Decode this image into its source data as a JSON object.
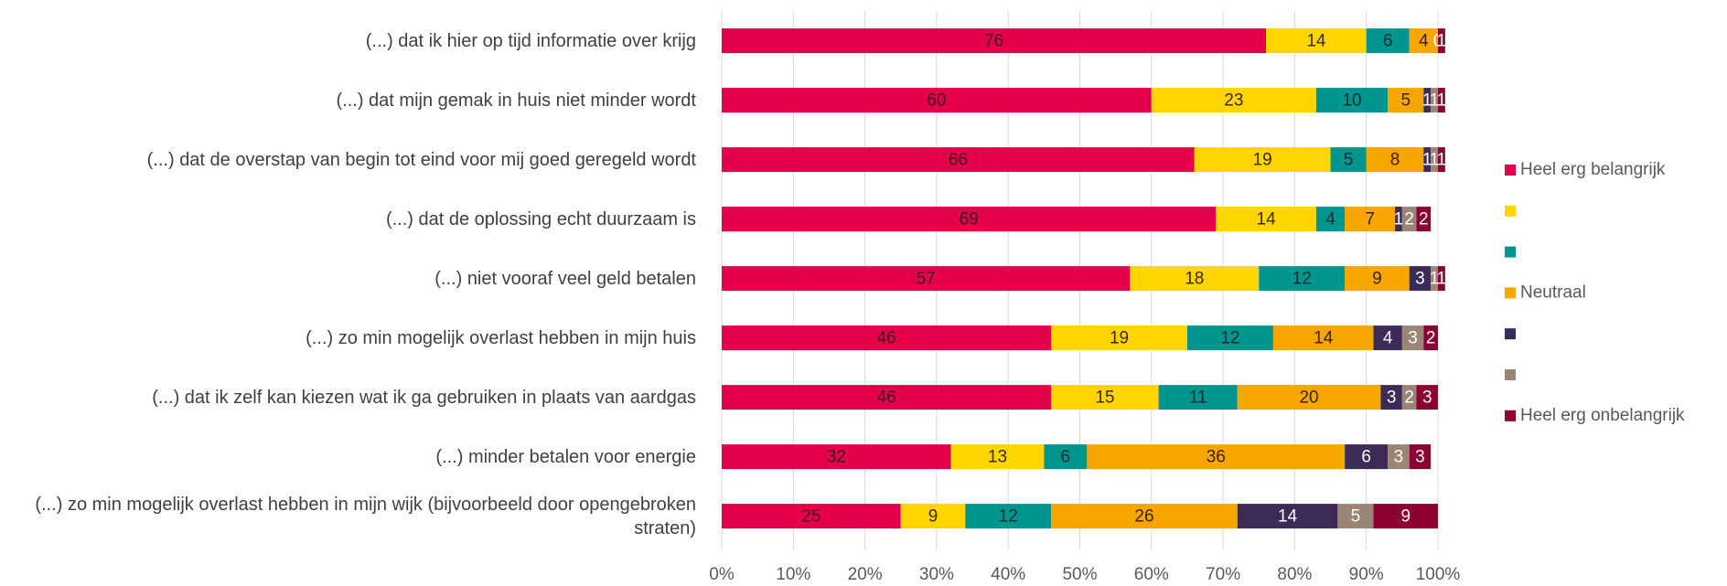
{
  "chart_data": {
    "type": "stacked_bar_horizontal",
    "categories": [
      "(...) dat ik hier op tijd informatie over krijg",
      "(...) dat mijn gemak in huis niet minder wordt",
      "(...) dat de overstap van begin tot eind voor mij goed geregeld wordt",
      "(...) dat de oplossing echt duurzaam is",
      "(...) niet vooraf veel geld betalen",
      "(...) zo min mogelijk overlast hebben in mijn huis",
      "(...) dat ik zelf kan kiezen wat ik ga gebruiken in plaats van aardgas",
      "(...) minder betalen voor energie",
      "(...) zo min mogelijk overlast hebben in mijn wijk (bijvoorbeeld door opengebroken straten)"
    ],
    "series": [
      {
        "name": "Heel erg belangrijk",
        "color": "#e4004b",
        "label_color": "#3a1a1a",
        "values": [
          76,
          60,
          66,
          69,
          57,
          46,
          46,
          32,
          25
        ]
      },
      {
        "name": null,
        "color": "#ffd500",
        "label_color": "#3a2a00",
        "values": [
          14,
          23,
          19,
          14,
          18,
          19,
          15,
          13,
          9
        ]
      },
      {
        "name": null,
        "color": "#00968f",
        "label_color": "#1a2a2a",
        "values": [
          6,
          10,
          5,
          4,
          12,
          12,
          11,
          6,
          12
        ]
      },
      {
        "name": "Neutraal",
        "color": "#f7a600",
        "label_color": "#3a2000",
        "values": [
          4,
          5,
          8,
          7,
          9,
          14,
          20,
          36,
          26
        ]
      },
      {
        "name": null,
        "color": "#3c2a57",
        "label_color": "#ffffff",
        "values": [
          0,
          1,
          1,
          1,
          3,
          4,
          3,
          6,
          14
        ]
      },
      {
        "name": null,
        "color": "#9b8574",
        "label_color": "#ffffff",
        "values": [
          0,
          1,
          1,
          2,
          1,
          3,
          2,
          3,
          5
        ]
      },
      {
        "name": "Heel erg onbelangrijk",
        "color": "#8c0032",
        "label_color": "#ffffff",
        "values": [
          1,
          1,
          1,
          2,
          1,
          2,
          3,
          3,
          9
        ]
      }
    ],
    "xlim": [
      0,
      100
    ],
    "xticks": [
      {
        "value": 0,
        "label": "0%"
      },
      {
        "value": 10,
        "label": "10%"
      },
      {
        "value": 20,
        "label": "20%"
      },
      {
        "value": 30,
        "label": "30%"
      },
      {
        "value": 40,
        "label": "40%"
      },
      {
        "value": 50,
        "label": "50%"
      },
      {
        "value": 60,
        "label": "60%"
      },
      {
        "value": 70,
        "label": "70%"
      },
      {
        "value": 80,
        "label": "80%"
      },
      {
        "value": 90,
        "label": "90%"
      },
      {
        "value": 100,
        "label": "100%"
      }
    ],
    "grid": true,
    "legend": "right"
  }
}
